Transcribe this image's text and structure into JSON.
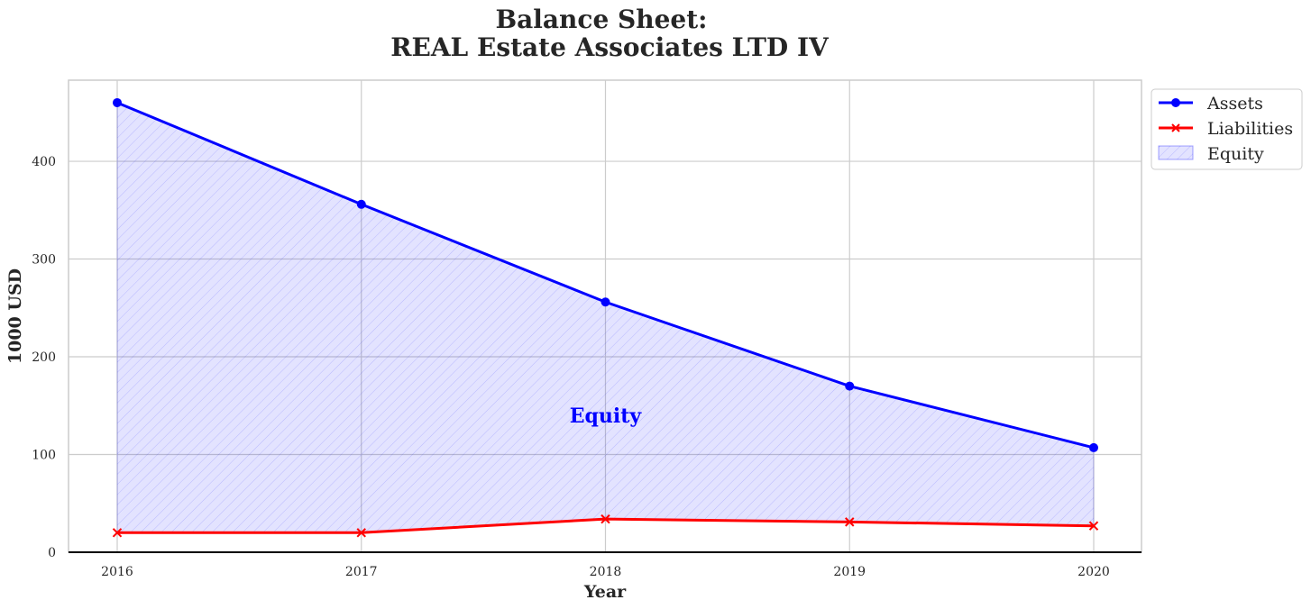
{
  "chart_data": {
    "type": "line",
    "title_line1": "Balance Sheet:",
    "title_line2": "REAL Estate Associates LTD IV",
    "xlabel": "Year",
    "ylabel": "1000 USD",
    "categories": [
      "2016",
      "2017",
      "2018",
      "2019",
      "2020"
    ],
    "yticks": [
      0,
      100,
      200,
      300,
      400
    ],
    "ylim": [
      0,
      483
    ],
    "grid": true,
    "legend_position": "outside-top-right",
    "series": [
      {
        "name": "Assets",
        "values": [
          460,
          356,
          256,
          170,
          107
        ],
        "color": "#0000ff",
        "marker": "circle"
      },
      {
        "name": "Liabilities",
        "values": [
          20,
          20,
          34,
          31,
          27
        ],
        "color": "#ff0000",
        "marker": "x"
      }
    ],
    "fill": {
      "name": "Equity",
      "between": [
        "Liabilities",
        "Assets"
      ],
      "color": "#0000ff",
      "pattern": "hatch"
    },
    "annotation": {
      "text": "Equity",
      "x": "2018",
      "y": 140,
      "color": "#0000ff"
    }
  }
}
